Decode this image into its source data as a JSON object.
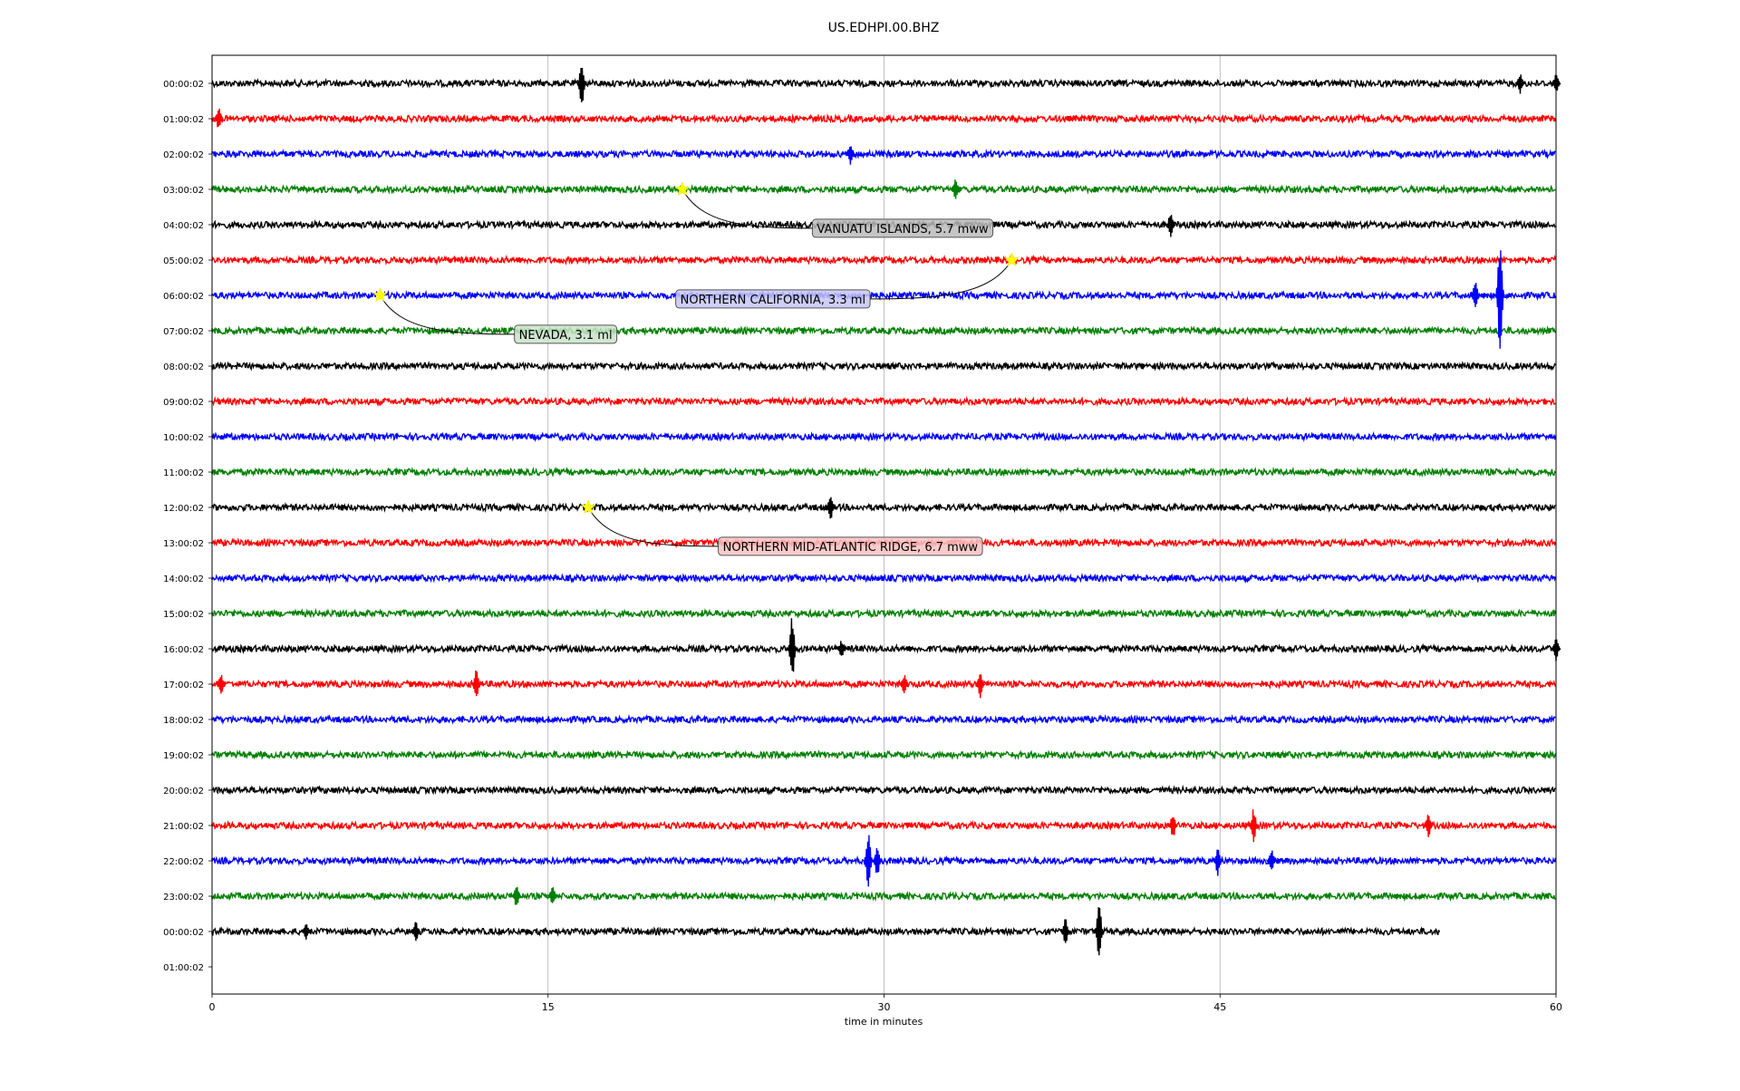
{
  "chart_data": {
    "type": "line",
    "title": "US.EDHPI.00.BHZ",
    "xlabel": "time in minutes",
    "ylabel": "",
    "xlim": [
      0,
      60
    ],
    "x_ticks": [
      0,
      15,
      30,
      45,
      60
    ],
    "x_tick_labels": [
      "0",
      "15",
      "30",
      "45",
      "60"
    ],
    "grid": "vertical lines at x ticks",
    "row_labels": [
      "00:00:02",
      "01:00:02",
      "02:00:02",
      "03:00:02",
      "04:00:02",
      "05:00:02",
      "06:00:02",
      "07:00:02",
      "08:00:02",
      "09:00:02",
      "10:00:02",
      "11:00:02",
      "12:00:02",
      "13:00:02",
      "14:00:02",
      "15:00:02",
      "16:00:02",
      "17:00:02",
      "18:00:02",
      "19:00:02",
      "20:00:02",
      "21:00:02",
      "22:00:02",
      "23:00:02",
      "00:00:02",
      "01:00:02"
    ],
    "trace_color_cycle": [
      "#000000",
      "#ff0000",
      "#0000ff",
      "#008000"
    ],
    "last_trace_end_minute": 54.8,
    "spikes": [
      {
        "row": 0,
        "minute": 16.5,
        "amp": 0.7
      },
      {
        "row": 0,
        "minute": 58.4,
        "amp": 0.3
      },
      {
        "row": 0,
        "minute": 60.0,
        "amp": 0.3
      },
      {
        "row": 1,
        "minute": 0.3,
        "amp": 0.35
      },
      {
        "row": 2,
        "minute": 28.5,
        "amp": 0.3
      },
      {
        "row": 3,
        "minute": 33.2,
        "amp": 0.35
      },
      {
        "row": 4,
        "minute": 42.8,
        "amp": 0.4
      },
      {
        "row": 6,
        "minute": 57.5,
        "amp": 1.7
      },
      {
        "row": 6,
        "minute": 56.4,
        "amp": 0.45
      },
      {
        "row": 12,
        "minute": 27.6,
        "amp": 0.4
      },
      {
        "row": 16,
        "minute": 25.9,
        "amp": 0.95
      },
      {
        "row": 16,
        "minute": 28.1,
        "amp": 0.25
      },
      {
        "row": 16,
        "minute": 60.0,
        "amp": 0.35
      },
      {
        "row": 17,
        "minute": 11.8,
        "amp": 0.5
      },
      {
        "row": 17,
        "minute": 0.4,
        "amp": 0.3
      },
      {
        "row": 17,
        "minute": 34.3,
        "amp": 0.4
      },
      {
        "row": 17,
        "minute": 30.9,
        "amp": 0.3
      },
      {
        "row": 21,
        "minute": 46.5,
        "amp": 0.5
      },
      {
        "row": 21,
        "minute": 42.9,
        "amp": 0.4
      },
      {
        "row": 21,
        "minute": 54.3,
        "amp": 0.35
      },
      {
        "row": 22,
        "minute": 29.3,
        "amp": 0.9
      },
      {
        "row": 22,
        "minute": 29.7,
        "amp": 0.5
      },
      {
        "row": 22,
        "minute": 44.9,
        "amp": 0.45
      },
      {
        "row": 22,
        "minute": 47.3,
        "amp": 0.35
      },
      {
        "row": 23,
        "minute": 13.6,
        "amp": 0.35
      },
      {
        "row": 23,
        "minute": 15.2,
        "amp": 0.3
      },
      {
        "row": 24,
        "minute": 39.6,
        "amp": 0.95
      },
      {
        "row": 24,
        "minute": 38.1,
        "amp": 0.4
      },
      {
        "row": 24,
        "minute": 9.1,
        "amp": 0.3
      },
      {
        "row": 24,
        "minute": 4.2,
        "amp": 0.25
      }
    ],
    "events": [
      {
        "label": "VANUATU ISLANDS, 5.7 mww",
        "row": 3,
        "minute": 21.0,
        "label_row": 4.1,
        "label_minute": 26.8,
        "box_color": "#bbbbbb"
      },
      {
        "label": "NORTHERN CALIFORNIA, 3.3 ml",
        "row": 5,
        "minute": 35.7,
        "label_row": 6.1,
        "label_minute": 20.7,
        "box_color": "#c5c5f5"
      },
      {
        "label": "NEVADA, 3.1 ml",
        "row": 6,
        "minute": 7.5,
        "label_row": 7.1,
        "label_minute": 13.5,
        "box_color": "#c9e3c9"
      },
      {
        "label": "NORTHERN MID-ATLANTIC RIDGE, 6.7 mww",
        "row": 12,
        "minute": 16.8,
        "label_row": 13.1,
        "label_minute": 22.6,
        "box_color": "#f7c2c2"
      }
    ]
  }
}
